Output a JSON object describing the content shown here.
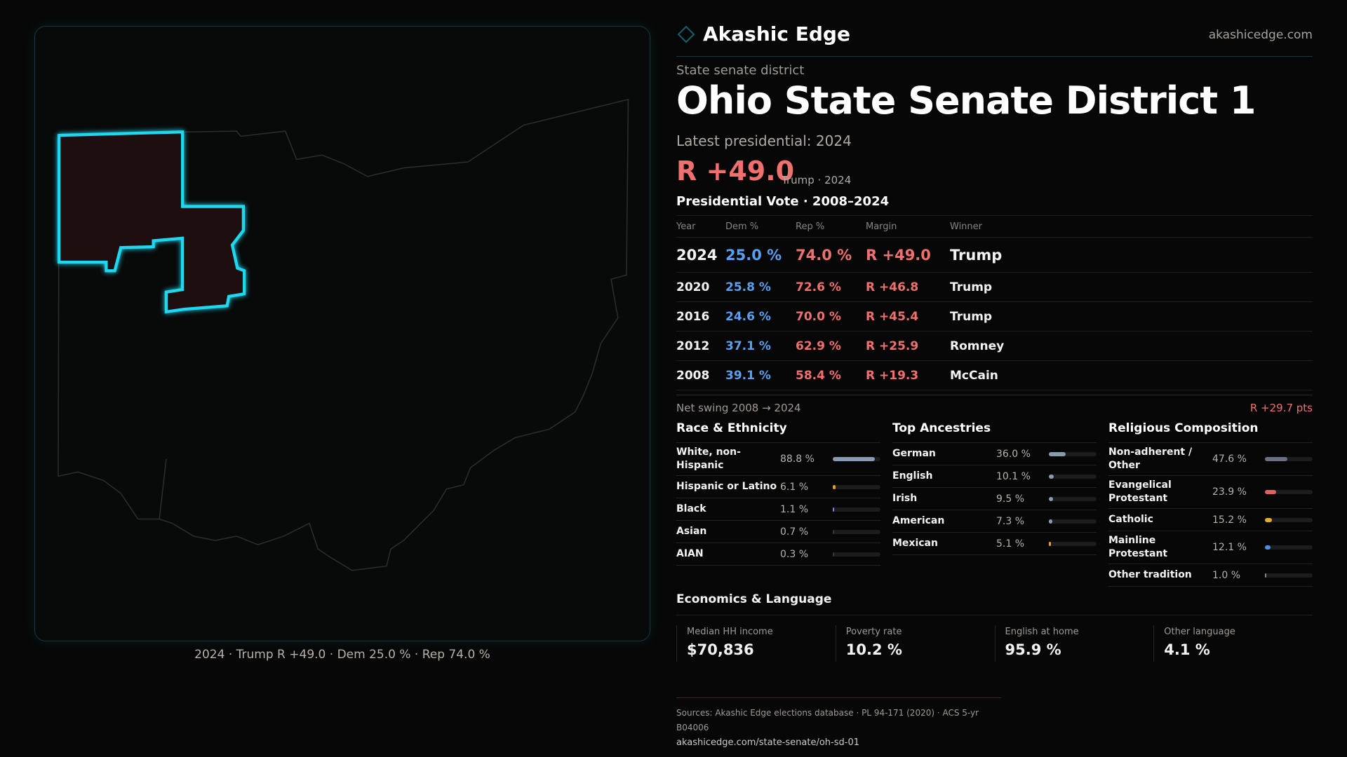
{
  "brand": {
    "name": "Akashic Edge",
    "site": "akashicedge.com",
    "accent": "#1fd8f0"
  },
  "header": {
    "kind": "State senate district",
    "title": "Ohio State Senate District 1",
    "latest": "Latest presidential: 2024",
    "margin": "R +49.0",
    "margin_sub": "Trump · 2024"
  },
  "map": {
    "caption": "2024 · Trump R +49.0 · Dem 25.0 % · Rep 74.0 %",
    "state": "Ohio",
    "highlight_color": "#1fd8f0"
  },
  "pres": {
    "title": "Presidential Vote · 2008–2024",
    "headers": [
      "Year",
      "Dem %",
      "Rep %",
      "Margin",
      "Winner"
    ],
    "rows": [
      {
        "year": "2024",
        "dem": "25.0 %",
        "rep": "74.0 %",
        "margin": "R +49.0",
        "winner": "Trump"
      },
      {
        "year": "2020",
        "dem": "25.8 %",
        "rep": "72.6 %",
        "margin": "R +46.8",
        "winner": "Trump"
      },
      {
        "year": "2016",
        "dem": "24.6 %",
        "rep": "70.0 %",
        "margin": "R +45.4",
        "winner": "Trump"
      },
      {
        "year": "2012",
        "dem": "37.1 %",
        "rep": "62.9 %",
        "margin": "R +25.9",
        "winner": "Romney"
      },
      {
        "year": "2008",
        "dem": "39.1 %",
        "rep": "58.4 %",
        "margin": "R +19.3",
        "winner": "McCain"
      }
    ],
    "swing_label": "Net swing 2008 → 2024",
    "swing_value": "R +29.7 pts"
  },
  "race": {
    "title": "Race & Ethnicity",
    "items": [
      {
        "label": "White, non-Hispanic",
        "value": "88.8 %",
        "pct": 88.8,
        "color": "#8a9ab0"
      },
      {
        "label": "Hispanic or Latino",
        "value": "6.1 %",
        "pct": 6.1,
        "color": "#e0a020"
      },
      {
        "label": "Black",
        "value": "1.1 %",
        "pct": 1.1,
        "color": "#8080e0"
      },
      {
        "label": "Asian",
        "value": "0.7 %",
        "pct": 0.7,
        "color": "#3a3a3a"
      },
      {
        "label": "AIAN",
        "value": "0.3 %",
        "pct": 0.3,
        "color": "#3a3a3a"
      }
    ]
  },
  "ancestry": {
    "title": "Top Ancestries",
    "items": [
      {
        "label": "German",
        "value": "36.0 %",
        "pct": 36.0,
        "color": "#8a9ab0"
      },
      {
        "label": "English",
        "value": "10.1 %",
        "pct": 10.1,
        "color": "#8a9ab0"
      },
      {
        "label": "Irish",
        "value": "9.5 %",
        "pct": 9.5,
        "color": "#8a9ab0"
      },
      {
        "label": "American",
        "value": "7.3 %",
        "pct": 7.3,
        "color": "#8a9ab0"
      },
      {
        "label": "Mexican",
        "value": "5.1 %",
        "pct": 5.1,
        "color": "#e0a020"
      }
    ]
  },
  "religion": {
    "title": "Religious Composition",
    "items": [
      {
        "label": "Non-adherent / Other",
        "value": "47.6 %",
        "pct": 47.6,
        "color": "#6a7080"
      },
      {
        "label": "Evangelical Protestant",
        "value": "23.9 %",
        "pct": 23.9,
        "color": "#e06060"
      },
      {
        "label": "Catholic",
        "value": "15.2 %",
        "pct": 15.2,
        "color": "#e0b020"
      },
      {
        "label": "Mainline Protestant",
        "value": "12.1 %",
        "pct": 12.1,
        "color": "#4a90e0"
      },
      {
        "label": "Other tradition",
        "value": "1.0 %",
        "pct": 1.0,
        "color": "#8a8a8a"
      }
    ]
  },
  "econ": {
    "title": "Economics & Language",
    "items": [
      {
        "label": "Median HH income",
        "value": "$70,836"
      },
      {
        "label": "Poverty rate",
        "value": "10.2 %"
      },
      {
        "label": "English at home",
        "value": "95.9 %"
      },
      {
        "label": "Other language",
        "value": "4.1 %"
      }
    ]
  },
  "footer": {
    "sources": "Sources: Akashic Edge elections database · PL 94-171 (2020) · ACS 5-yr B04006",
    "url": "akashicedge.com/state-senate/oh-sd-01"
  }
}
